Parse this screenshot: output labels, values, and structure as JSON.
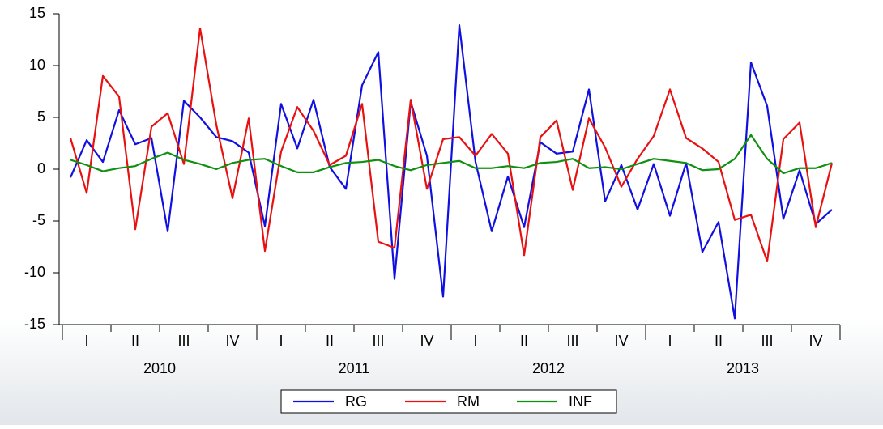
{
  "chart_data": {
    "type": "line",
    "quarter_labels": [
      "I",
      "II",
      "III",
      "IV",
      "I",
      "II",
      "III",
      "IV",
      "I",
      "II",
      "III",
      "IV",
      "I",
      "II",
      "III",
      "IV"
    ],
    "year_labels": [
      "2010",
      "2011",
      "2012",
      "2013"
    ],
    "ylim": [
      -15,
      15
    ],
    "yticks": [
      -15,
      -10,
      -5,
      0,
      5,
      10,
      15
    ],
    "legend": "bottom",
    "series": [
      {
        "name": "RG",
        "color": "#1010e0",
        "values": [
          -0.8,
          2.8,
          0.7,
          5.7,
          2.4,
          3.0,
          -6.0,
          6.6,
          5.0,
          3.1,
          2.7,
          1.6,
          -5.5,
          6.3,
          2.0,
          6.7,
          0.2,
          -1.9,
          8.1,
          11.3,
          -10.6,
          6.5,
          1.3,
          -12.3,
          13.9,
          0.7,
          -6.0,
          -0.7,
          -5.6,
          2.6,
          1.5,
          1.7,
          7.7,
          -3.1,
          0.4,
          -3.9,
          0.5,
          -4.5,
          0.6,
          -8.0,
          -5.1,
          -14.4,
          10.3,
          6.1,
          -4.8,
          -0.1,
          -5.3,
          -3.9
        ]
      },
      {
        "name": "RM",
        "color": "#e81010",
        "values": [
          3.0,
          -2.3,
          9.0,
          7.0,
          -5.8,
          4.1,
          5.4,
          0.5,
          13.6,
          4.3,
          -2.8,
          4.9,
          -7.9,
          1.7,
          6.0,
          3.7,
          0.4,
          1.3,
          6.3,
          -7.0,
          -7.6,
          6.7,
          -1.9,
          2.9,
          3.1,
          1.3,
          3.4,
          1.5,
          -8.3,
          3.1,
          4.7,
          -2.0,
          4.9,
          2.1,
          -1.7,
          1.0,
          3.2,
          7.7,
          3.0,
          2.0,
          0.7,
          -4.9,
          -4.4,
          -8.9,
          2.9,
          4.5,
          -5.6,
          0.6
        ]
      },
      {
        "name": "INF",
        "color": "#109010",
        "values": [
          0.9,
          0.4,
          -0.2,
          0.1,
          0.3,
          1.0,
          1.6,
          0.9,
          0.5,
          0.0,
          0.6,
          0.9,
          1.0,
          0.3,
          -0.3,
          -0.3,
          0.2,
          0.6,
          0.7,
          0.9,
          0.3,
          -0.1,
          0.4,
          0.6,
          0.8,
          0.1,
          0.1,
          0.3,
          0.1,
          0.6,
          0.7,
          1.0,
          0.1,
          0.2,
          0.0,
          0.5,
          1.0,
          0.8,
          0.6,
          -0.1,
          0.0,
          1.0,
          3.3,
          1.0,
          -0.4,
          0.1,
          0.1,
          0.6
        ]
      }
    ]
  }
}
